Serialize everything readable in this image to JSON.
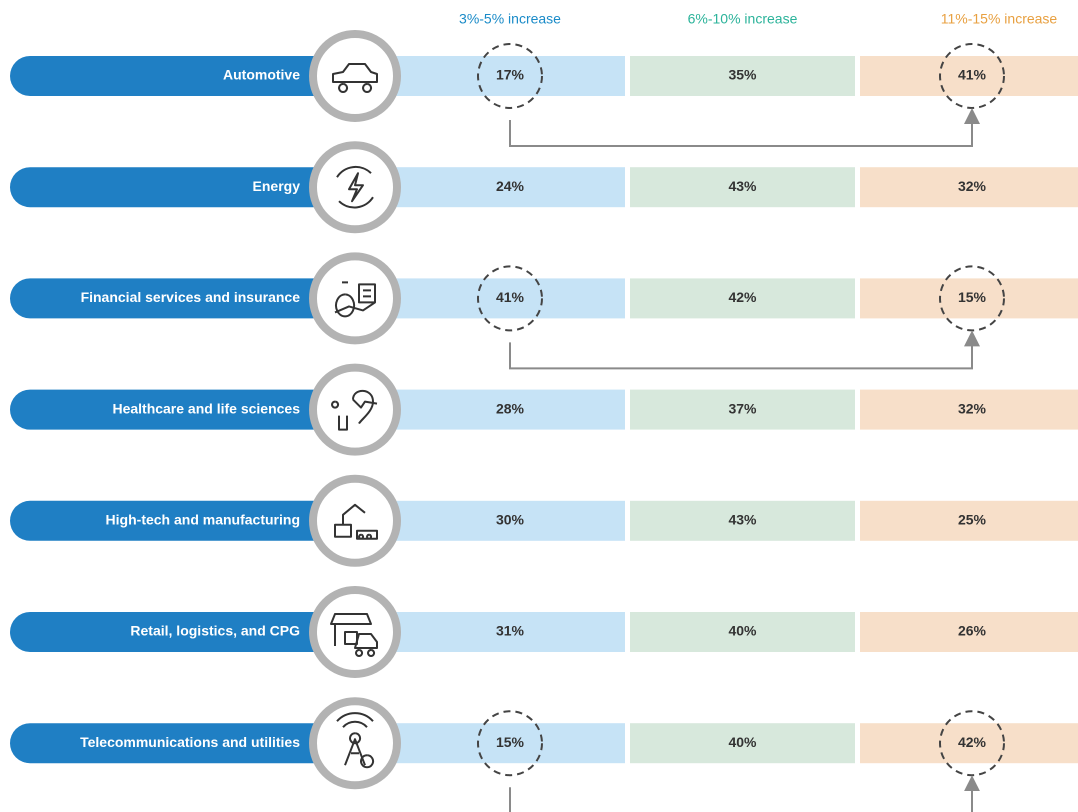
{
  "table": {
    "columns": [
      "3%-5% increase",
      "6%-10% increase",
      "11%-15% increase"
    ],
    "rows": [
      {
        "label": "Automotive",
        "cells": [
          "17%",
          "35%",
          "41%"
        ],
        "highlight": true
      },
      {
        "label": "Energy",
        "cells": [
          "24%",
          "43%",
          "32%"
        ],
        "highlight": false
      },
      {
        "label": "Financial services and insurance",
        "cells": [
          "41%",
          "42%",
          "15%"
        ],
        "highlight": true
      },
      {
        "label": "Healthcare and life sciences",
        "cells": [
          "28%",
          "37%",
          "32%"
        ],
        "highlight": false
      },
      {
        "label": "High-tech and manufacturing",
        "cells": [
          "30%",
          "43%",
          "25%"
        ],
        "highlight": false
      },
      {
        "label": "Retail, logistics, and CPG",
        "cells": [
          "31%",
          "40%",
          "26%"
        ],
        "highlight": false
      },
      {
        "label": "Telecommunications and utilities",
        "cells": [
          "15%",
          "40%",
          "42%"
        ],
        "highlight": true
      }
    ]
  }
}
